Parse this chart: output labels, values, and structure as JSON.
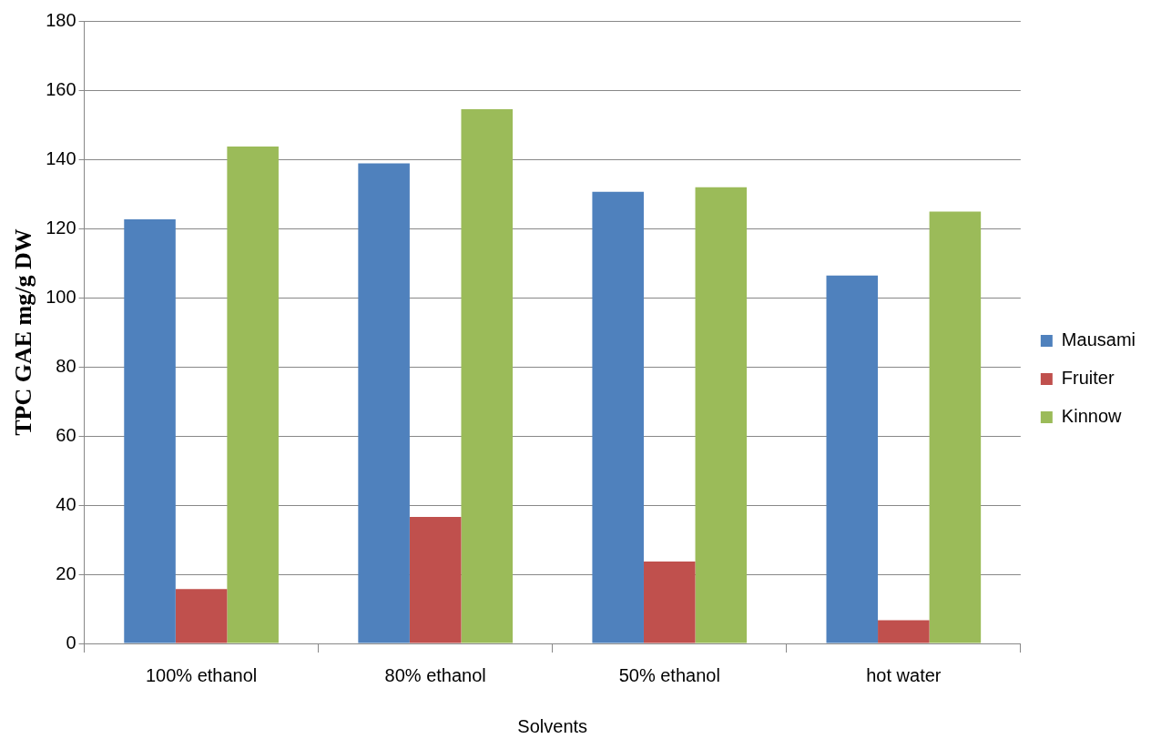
{
  "chart_data": {
    "type": "bar",
    "xlabel": "Solvents",
    "ylabel": "TPC GAE mg/g DW",
    "categories": [
      "100% ethanol",
      "80% ethanol",
      "50% ethanol",
      "hot water"
    ],
    "series": [
      {
        "name": "Mausami",
        "color": "#4f81bd",
        "values": [
          122.6,
          138.8,
          130.6,
          106.4
        ]
      },
      {
        "name": "Fruiter",
        "color": "#c0504d",
        "values": [
          15.7,
          36.6,
          23.7,
          6.7
        ]
      },
      {
        "name": "Kinnow",
        "color": "#9bbb59",
        "values": [
          143.7,
          154.5,
          131.9,
          124.9
        ]
      }
    ],
    "ylim": [
      0,
      180
    ],
    "yticks": [
      0,
      20,
      40,
      60,
      80,
      100,
      120,
      140,
      160,
      180
    ],
    "grid": "y",
    "legend": "right"
  }
}
